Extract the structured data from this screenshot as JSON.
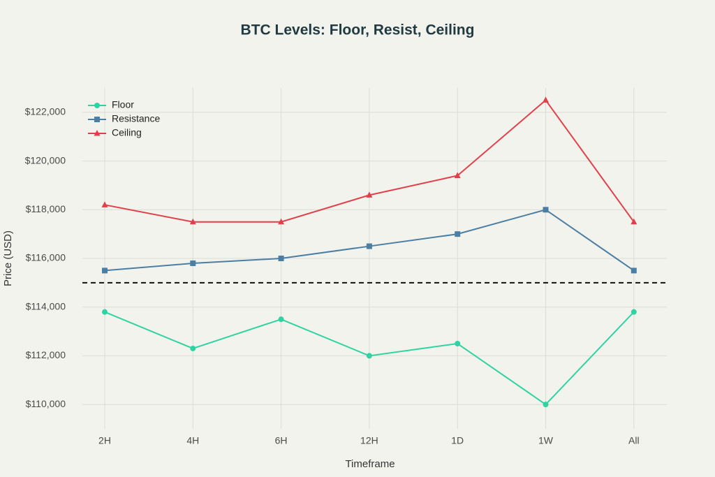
{
  "chart_data": {
    "type": "line",
    "title": "BTC Levels: Floor, Resist, Ceiling",
    "x_label": "Timeframe",
    "y_label": "Price (USD)",
    "categories": [
      "2H",
      "4H",
      "6H",
      "12H",
      "1D",
      "1W",
      "All"
    ],
    "series": [
      {
        "name": "Floor",
        "color": "#2fd3a2",
        "marker": "circle",
        "values": [
          113800,
          112300,
          113500,
          112000,
          112500,
          110000,
          113800
        ]
      },
      {
        "name": "Resistance",
        "color": "#4b7ea3",
        "marker": "square",
        "values": [
          115500,
          115800,
          116000,
          116500,
          117000,
          118000,
          115500
        ]
      },
      {
        "name": "Ceiling",
        "color": "#e0404a",
        "marker": "triangle",
        "values": [
          118200,
          117500,
          117500,
          118600,
          119400,
          122500,
          117500
        ]
      }
    ],
    "hline": {
      "value": 115000,
      "color": "#111111",
      "dash": true
    },
    "ylim": [
      109000,
      123000
    ],
    "yticks": [
      {
        "value": 110000,
        "label": "$110,000"
      },
      {
        "value": 112000,
        "label": "$112,000"
      },
      {
        "value": 114000,
        "label": "$114,000"
      },
      {
        "value": 116000,
        "label": "$116,000"
      },
      {
        "value": 118000,
        "label": "$118,000"
      },
      {
        "value": 120000,
        "label": "$120,000"
      },
      {
        "value": 122000,
        "label": "$122,000"
      }
    ],
    "grid": true,
    "legend": "top-left"
  }
}
